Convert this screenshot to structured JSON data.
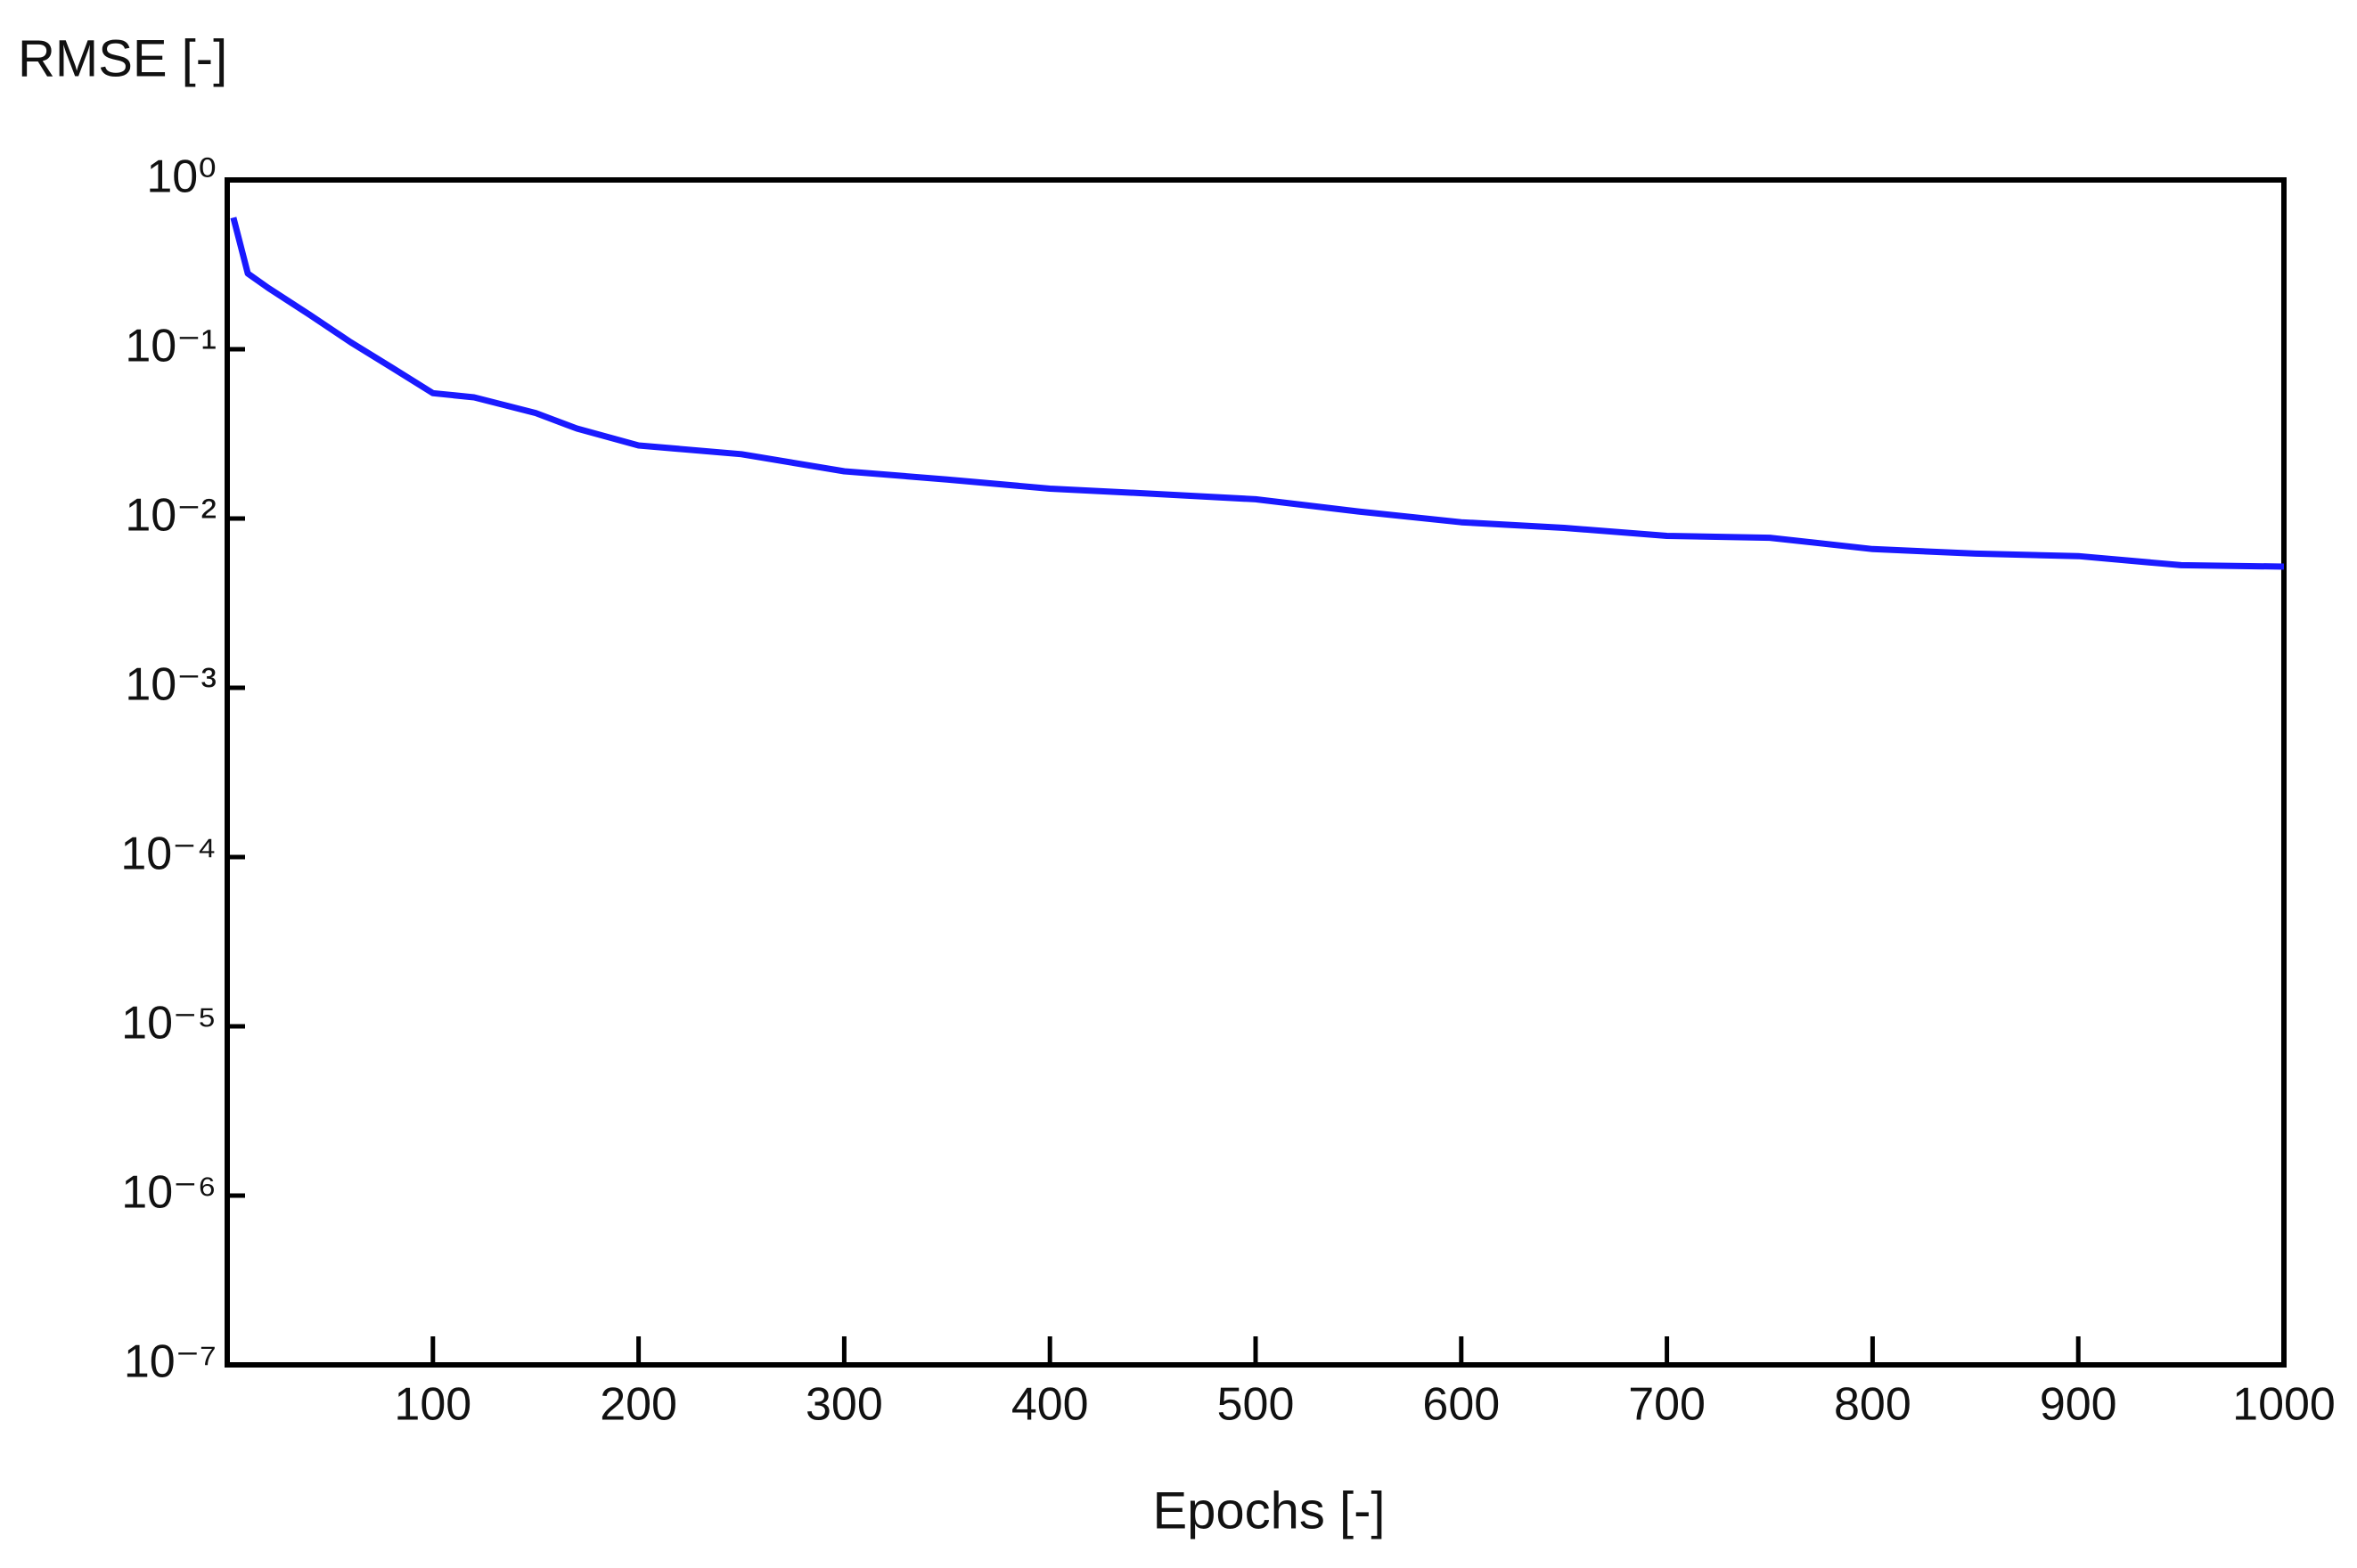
{
  "chart_data": {
    "type": "line",
    "y_label": "RMSE [-]",
    "x_label": "Epochs [-]",
    "x": [
      3,
      10,
      20,
      40,
      60,
      80,
      100,
      120,
      150,
      170,
      200,
      250,
      300,
      350,
      400,
      450,
      500,
      550,
      600,
      650,
      700,
      750,
      800,
      850,
      900,
      950,
      1000
    ],
    "values": [
      0.6,
      0.28,
      0.23,
      0.16,
      0.11,
      0.078,
      0.055,
      0.052,
      0.042,
      0.034,
      0.027,
      0.024,
      0.019,
      0.017,
      0.015,
      0.014,
      0.013,
      0.011,
      0.0095,
      0.0088,
      0.0079,
      0.0077,
      0.0066,
      0.0062,
      0.006,
      0.0053,
      0.0052
    ],
    "color": "#1a1aff",
    "xlim": [
      0,
      1000
    ],
    "xticks": [
      100,
      200,
      300,
      400,
      500,
      600,
      700,
      800,
      900,
      1000
    ],
    "ylim": [
      1e-07,
      1
    ],
    "log_y": true,
    "yticks": [
      {
        "value": 1e-07,
        "label": "10⁻⁷"
      },
      {
        "value": 1e-06,
        "label": "10⁻⁶"
      },
      {
        "value": 1e-05,
        "label": "10⁻⁵"
      },
      {
        "value": 0.0001,
        "label": "10⁻⁴"
      },
      {
        "value": 0.001,
        "label": "10⁻³"
      },
      {
        "value": 0.01,
        "label": "10⁻²"
      },
      {
        "value": 0.1,
        "label": "10⁻¹"
      },
      {
        "value": 1,
        "label": "10⁰"
      }
    ],
    "grid": false
  }
}
